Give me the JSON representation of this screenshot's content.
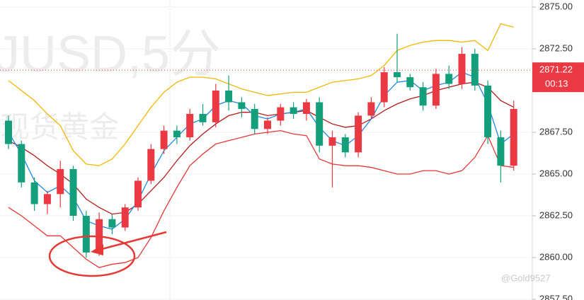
{
  "chart_data": {
    "type": "candlestick",
    "watermark_symbol": "JUSD,5分",
    "watermark_name": "现货黄金",
    "credit": "@Gold9527",
    "up_color": "#ea3943",
    "down_color": "#139f7c",
    "open": [
      2868.2,
      2866.8,
      2864.5,
      2863.2,
      2863.8,
      2865.3,
      2862.5,
      2860.3,
      2862.3,
      2861.8,
      2863,
      2864.6,
      2866.5,
      2867.6,
      2867.2,
      2868.6,
      2868.1,
      2870,
      2869.3,
      2868.9,
      2867.7,
      2868.2,
      2869,
      2868.6,
      2869.3,
      2866.7,
      2867.2,
      2866.3,
      2868.5,
      2869.3,
      2871.1,
      2870.8,
      2870.2,
      2869.1,
      2871,
      2870.4,
      2872.2,
      2870.3,
      2867.2,
      2865.5
    ],
    "high": [
      2868.5,
      2867,
      2864.8,
      2864,
      2865.8,
      2865.5,
      2862.8,
      2862.7,
      2862.6,
      2863.2,
      2864.8,
      2866.8,
      2867.9,
      2867.9,
      2868.9,
      2869.2,
      2870.4,
      2870.9,
      2869.6,
      2869.2,
      2868.4,
      2869.2,
      2869.3,
      2869.5,
      2869.6,
      2867.6,
      2867.4,
      2868.7,
      2869.6,
      2871.4,
      2873.4,
      2871,
      2870.5,
      2871.3,
      2871.5,
      2872.6,
      2872.5,
      2870.6,
      2867.6,
      2869.4
    ],
    "low": [
      2866.5,
      2864.2,
      2862.8,
      2862.6,
      2863,
      2862.2,
      2860,
      2860.1,
      2861.4,
      2861.6,
      2862.8,
      2864.4,
      2866.2,
      2866.8,
      2867,
      2867.9,
      2867.8,
      2868.8,
      2868.4,
      2867.4,
      2867.4,
      2867.9,
      2868.3,
      2868.2,
      2866.3,
      2864.2,
      2866,
      2866,
      2868.3,
      2869,
      2870.5,
      2870,
      2868.8,
      2868.9,
      2870.1,
      2870.1,
      2870,
      2866.8,
      2864.5,
      2865.2
    ],
    "close": [
      2866.8,
      2864.5,
      2863.2,
      2863.8,
      2865.3,
      2862.5,
      2860.3,
      2862.3,
      2861.8,
      2863,
      2864.6,
      2866.5,
      2867.6,
      2867.2,
      2868.6,
      2868.1,
      2870,
      2869.3,
      2868.9,
      2867.7,
      2868.2,
      2869,
      2868.6,
      2869.3,
      2866.7,
      2867.2,
      2866.3,
      2868.5,
      2869.3,
      2871.1,
      2870.8,
      2870.2,
      2869.1,
      2871,
      2870.4,
      2872.2,
      2870.3,
      2867.2,
      2865.5,
      2868.9
    ],
    "lines": [
      {
        "color": "#f2b705",
        "values": [
          2870.6,
          2870.0,
          2869.4,
          2868.6,
          2867.9,
          2866.4,
          2865.6,
          2865.5,
          2865.9,
          2866.8,
          2867.9,
          2869.0,
          2869.9,
          2870.5,
          2870.8,
          2870.8,
          2870.7,
          2870.4,
          2870.1,
          2869.9,
          2869.7,
          2869.8,
          2869.9,
          2869.9,
          2870.2,
          2870.5,
          2870.6,
          2870.7,
          2870.9,
          2871.5,
          2872.4,
          2872.7,
          2872.9,
          2873.0,
          2873.0,
          2872.9,
          2873.0,
          2872.4,
          2874.0,
          2873.8
        ]
      },
      {
        "color": "#e53935",
        "values": [
          2863.0,
          2862.5,
          2861.9,
          2861.3,
          2861.3,
          2860.6,
          2859.9,
          2859.4,
          2859.6,
          2859.7,
          2860.0,
          2861.2,
          2862.8,
          2864.2,
          2865.5,
          2866.2,
          2866.8,
          2867.0,
          2867.2,
          2867.4,
          2867.5,
          2867.6,
          2867.4,
          2867.3,
          2865.9,
          2865.6,
          2865.5,
          2865.5,
          2865.4,
          2865.2,
          2865.0,
          2865.0,
          2865.2,
          2865.2,
          2865.0,
          2865.2,
          2866.0,
          2867.3,
          2865.5,
          2865.4
        ]
      },
      {
        "color": "#b71c1c",
        "values": [
          2867.0,
          2866.6,
          2866.1,
          2865.5,
          2865.0,
          2864.4,
          2863.5,
          2863.0,
          2862.6,
          2862.7,
          2863.2,
          2864.0,
          2864.8,
          2865.8,
          2866.7,
          2867.4,
          2868.0,
          2868.5,
          2868.7,
          2868.7,
          2868.5,
          2868.6,
          2868.7,
          2868.8,
          2868.4,
          2868.0,
          2867.8,
          2867.9,
          2868.3,
          2868.8,
          2869.2,
          2869.5,
          2869.7,
          2870.0,
          2870.2,
          2870.4,
          2870.5,
          2870.2,
          2869.4,
          2869.0
        ]
      },
      {
        "color": "#1e88e5",
        "values": [
          2867.5,
          2866.2,
          2864.6,
          2863.9,
          2864.3,
          2863.6,
          2862.2,
          2861.9,
          2861.7,
          2862.3,
          2863.4,
          2865.0,
          2866.4,
          2867.2,
          2868.0,
          2868.3,
          2869.1,
          2869.4,
          2869.2,
          2868.5,
          2868.3,
          2868.6,
          2868.7,
          2868.9,
          2867.8,
          2867.0,
          2866.7,
          2867.3,
          2868.3,
          2869.7,
          2870.5,
          2870.6,
          2870.0,
          2870.3,
          2870.5,
          2871.1,
          2870.8,
          2869.2,
          2866.8,
          2867.4
        ]
      }
    ],
    "ylim": [
      2857.5,
      2875
    ],
    "yticks": [
      {
        "value": 2875,
        "label": "2875.00"
      },
      {
        "value": 2872.5,
        "label": "2872.50"
      },
      {
        "value": 2867.5,
        "label": "2867.50"
      },
      {
        "value": 2865,
        "label": "2865.00"
      },
      {
        "value": 2862.5,
        "label": "2862.50"
      },
      {
        "value": 2860,
        "label": "2860.00"
      },
      {
        "value": 2857.5,
        "label": "2857.50"
      }
    ],
    "grid": true,
    "last_price": 2871.22,
    "countdown": "00:13"
  }
}
